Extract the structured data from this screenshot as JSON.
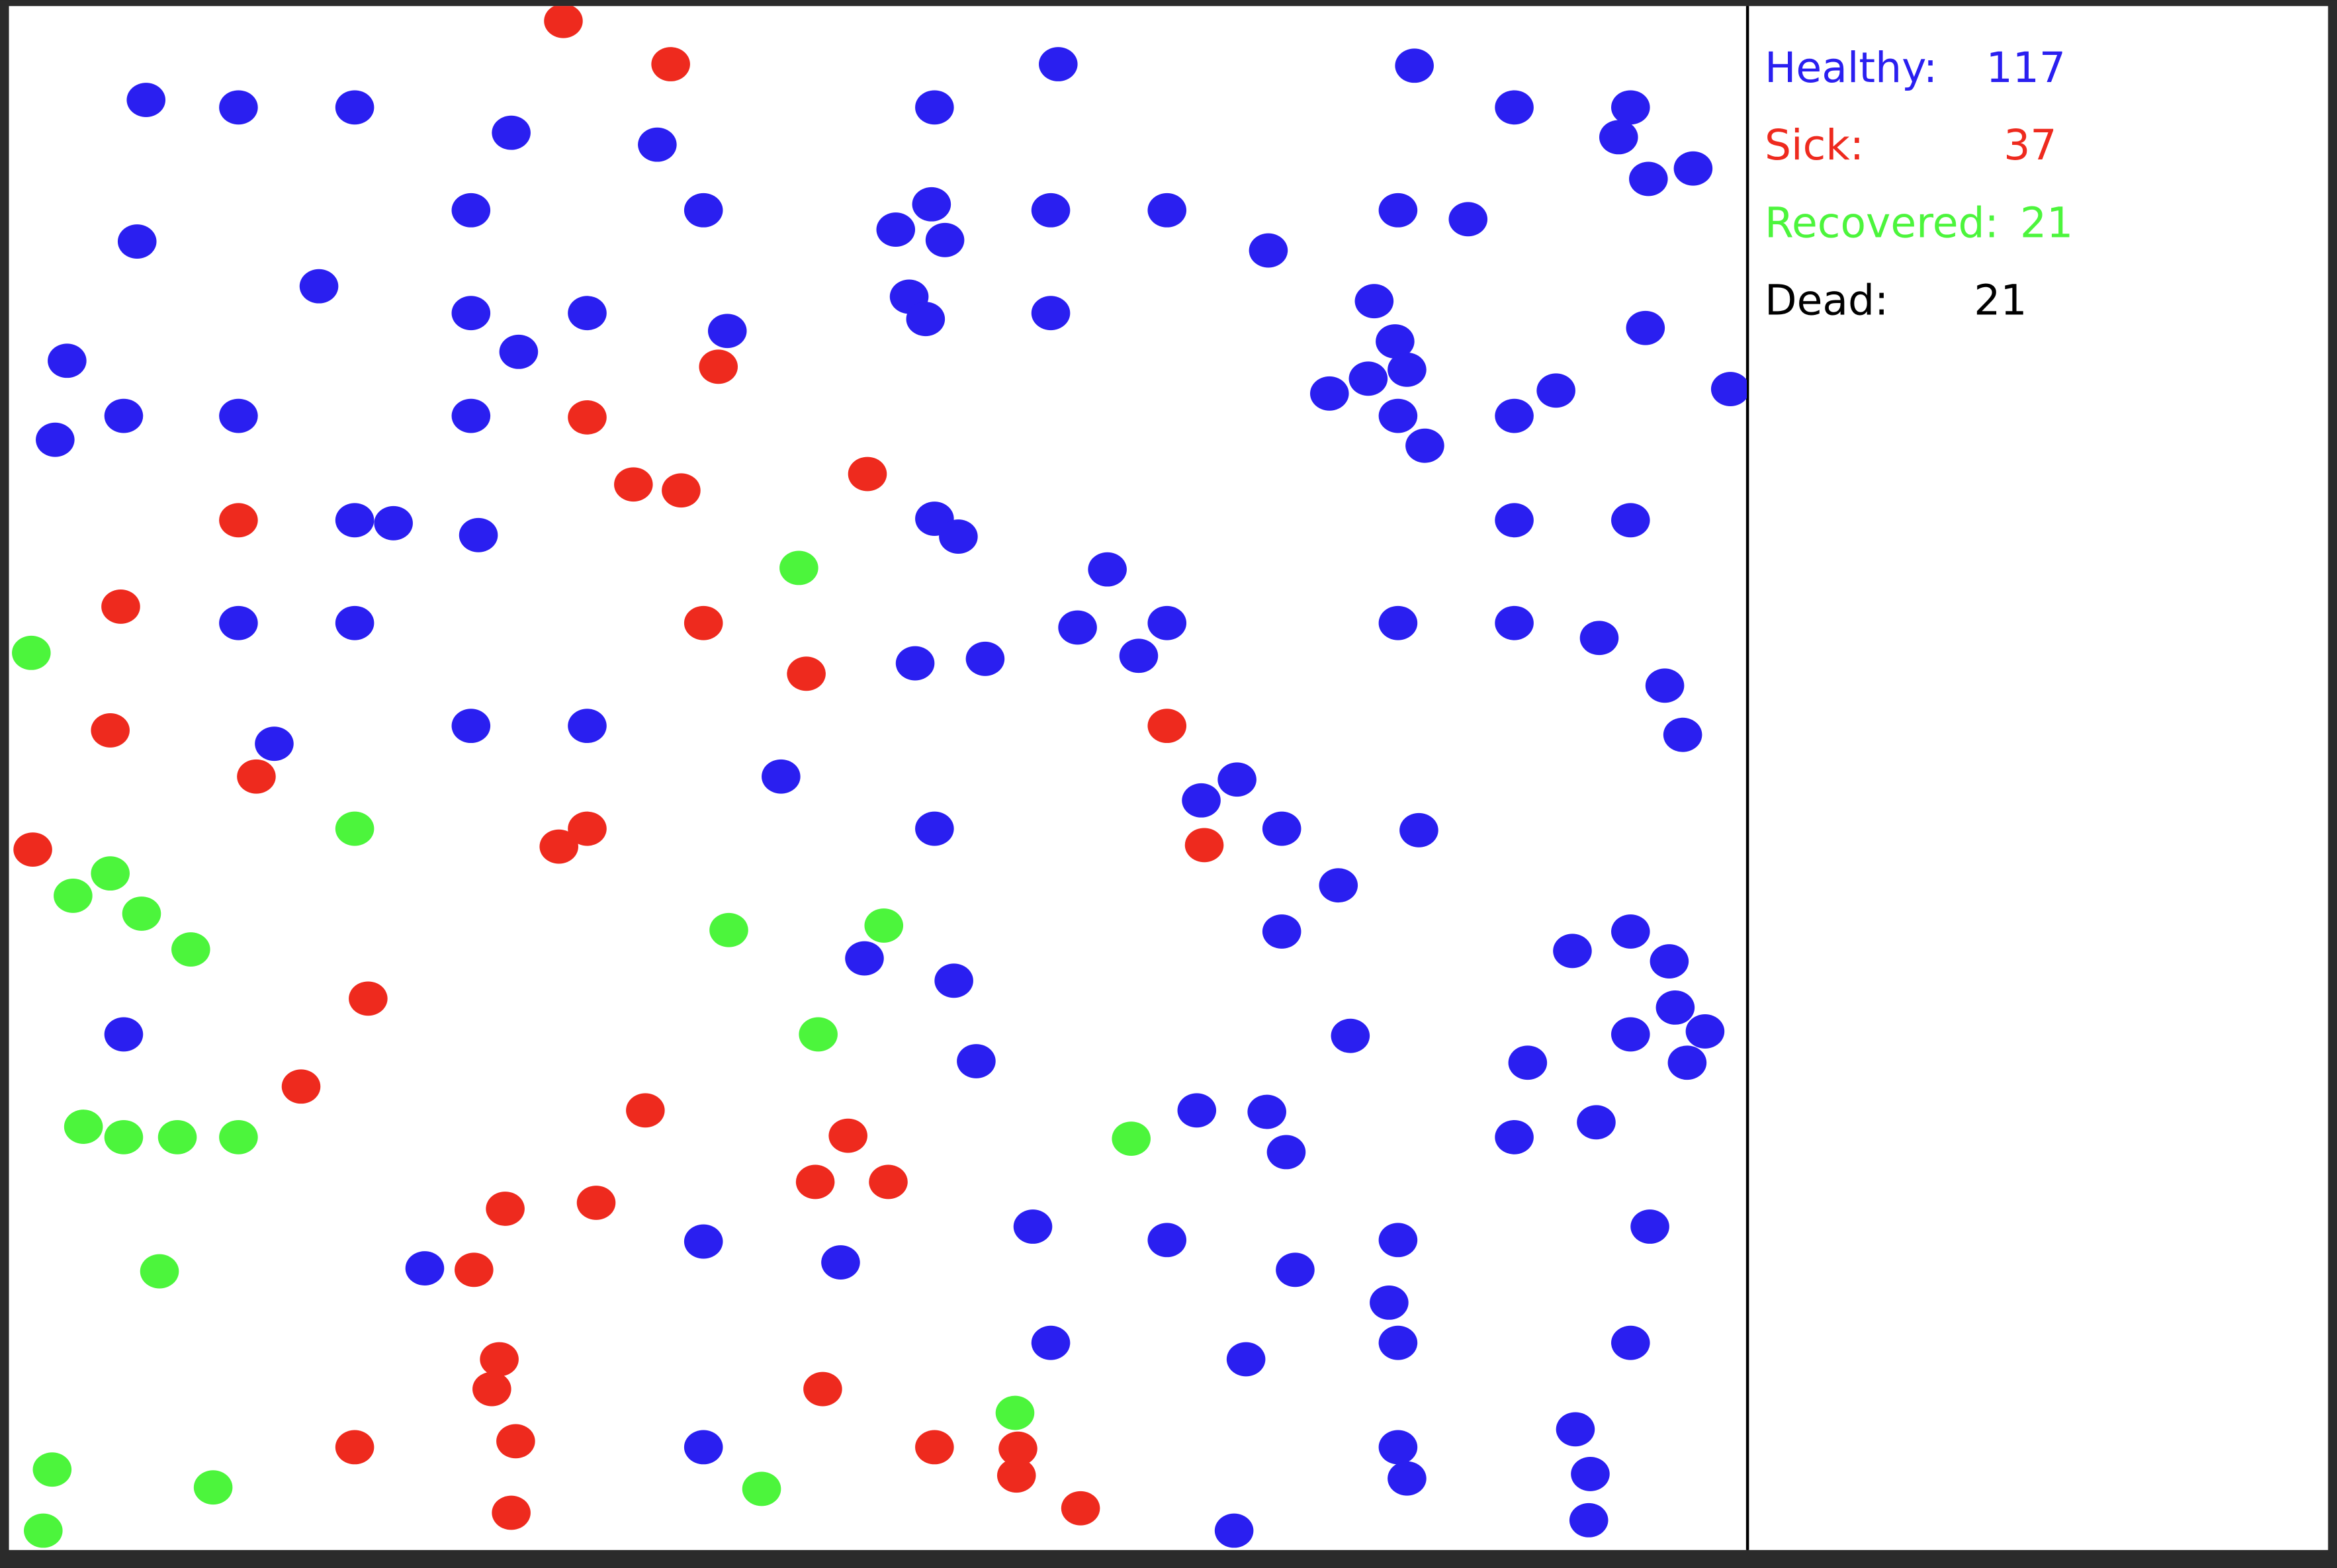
{
  "stats": [
    {
      "label": "Healthy:",
      "value": 117
    },
    {
      "label": "Sick:",
      "value": 37
    },
    {
      "label": "Recovered:",
      "value": 21
    },
    {
      "label": "Dead:",
      "value": 21
    }
  ]
}
